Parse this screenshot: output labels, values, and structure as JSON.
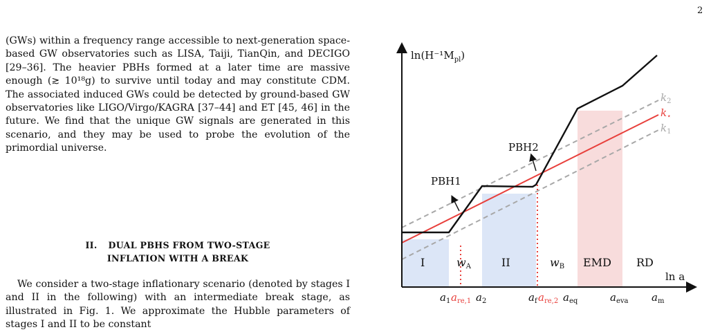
{
  "page": {
    "number": "2"
  },
  "paragraph1": "(GWs) within a frequency range accessible to next-generation space-based GW observatories such as LISA, Taiji, TianQin, and DECIGO [29–36]. The heavier PBHs formed at a later time are massive enough (≳ 10¹⁸g) to survive until today and may constitute CDM. The associated induced GWs could be detected by ground-based GW observatories like LIGO/Virgo/KAGRA [37–44] and ET [45, 46] in the future. We find that the unique GW signals are generated in this scenario, and they may be used to probe the evolution of the primordial universe.",
  "section": {
    "number": "II.",
    "title_line1": "DUAL PBHS FROM TWO-STAGE",
    "title_line2": "INFLATION WITH A BREAK"
  },
  "paragraph2": "We consider a two-stage inflationary scenario (denoted by stages I and II in the following) with an intermediate break stage, as illustrated in Fig. 1. We approximate the Hubble parameters of stages I and II to be constant",
  "figure": {
    "y_axis_label": "ln(H⁻¹M",
    "y_axis_label_sub": "pl",
    "y_axis_label_close": ")",
    "x_axis_label": "ln a",
    "region_labels": {
      "I": "I",
      "wA": "w",
      "wA_sub": "A",
      "II": "II",
      "wB": "w",
      "wB_sub": "B",
      "EMD": "EMD",
      "RD": "RD"
    },
    "pbh_labels": {
      "pbh1": "PBH1",
      "pbh2": "PBH2"
    },
    "line_labels": {
      "k2": "k",
      "k2_sub": "2",
      "kstar": "k",
      "kstar_sub": "⋆",
      "k1": "k",
      "k1_sub": "1"
    },
    "ticks": {
      "a1": "a",
      "a1_sub": "1",
      "are1": "a",
      "are1_sub": "re,1",
      "a2": "a",
      "a2_sub": "2",
      "af": "a",
      "af_sub": "f",
      "are2": "a",
      "are2_sub": "re,2",
      "aeq": "a",
      "aeq_sub": "eq",
      "aeva": "a",
      "aeva_sub": "eva",
      "am": "a",
      "am_sub": "m"
    },
    "colors": {
      "red": "#e8403c",
      "gray": "#a8a8a8",
      "blue_shade": "#dce6f7",
      "pink_shade": "#f8dcdc"
    }
  }
}
